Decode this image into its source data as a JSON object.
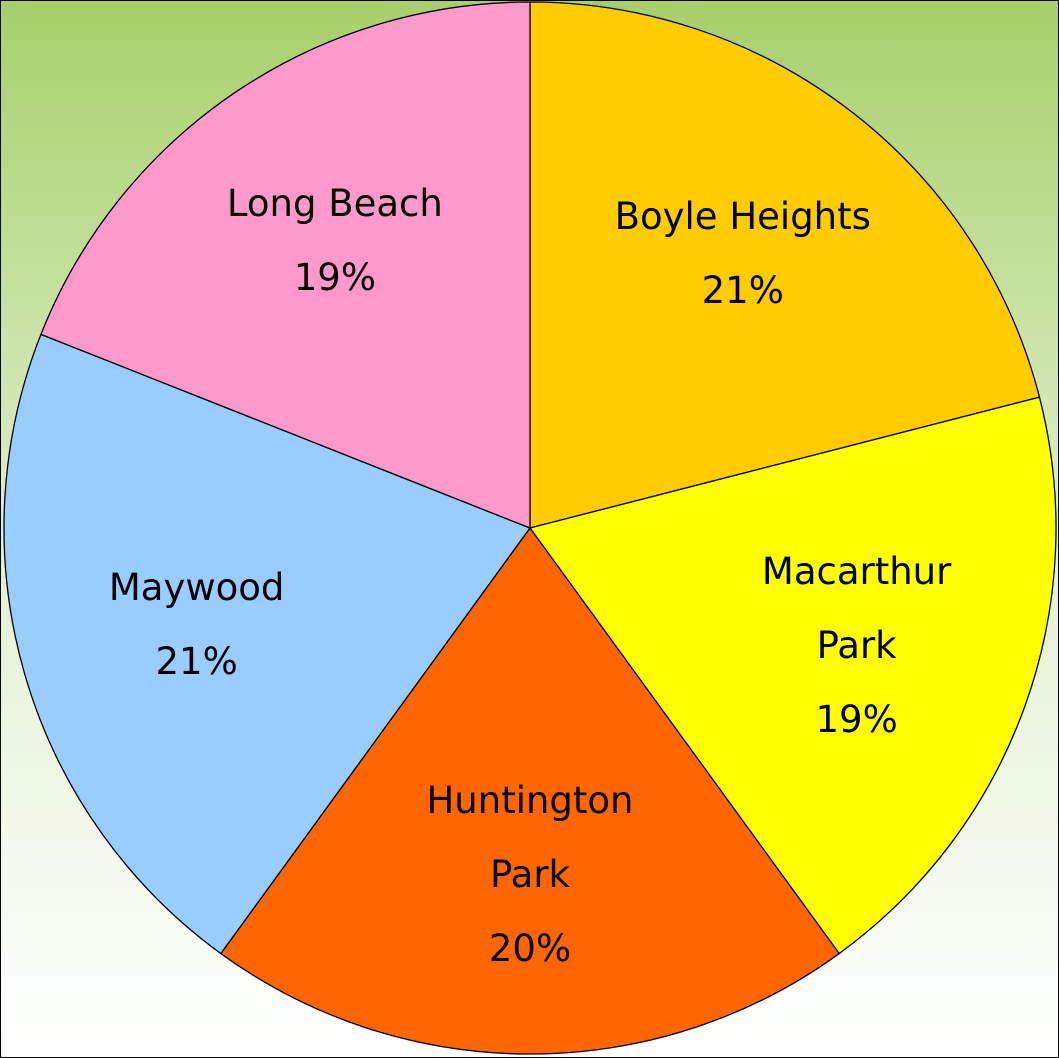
{
  "chart_data": {
    "type": "pie",
    "categories": [
      "Boyle Heights",
      "Macarthur Park",
      "Huntington Park",
      "Maywood",
      "Long Beach"
    ],
    "values": [
      21,
      19,
      20,
      21,
      19
    ],
    "value_labels": [
      "21%",
      "19%",
      "20%",
      "21%",
      "19%"
    ],
    "colors": [
      "#ffcc00",
      "#ffff00",
      "#ff6600",
      "#99ccff",
      "#ff99cc"
    ]
  }
}
